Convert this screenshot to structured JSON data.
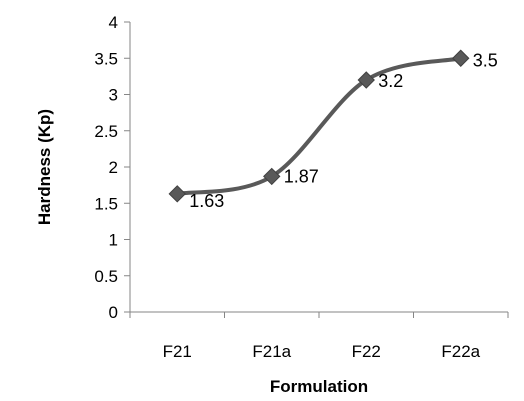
{
  "chart_data": {
    "type": "line",
    "title": "",
    "xlabel": "Formulation",
    "ylabel": "Hardness (Kp)",
    "categories": [
      "F21",
      "F21a",
      "F22",
      "F22a"
    ],
    "series": [
      {
        "values": [
          1.63,
          1.87,
          3.2,
          3.5
        ],
        "color": "#595959",
        "marker": "diamond",
        "smooth": true
      }
    ],
    "data_labels": [
      "1.63",
      "1.87",
      "3.2",
      "3.5"
    ],
    "ylim": [
      0,
      4
    ],
    "yticks": [
      "0",
      "0.5",
      "1",
      "1.5",
      "2",
      "2.5",
      "3",
      "3.5",
      "4"
    ],
    "grid": false,
    "legend": "none"
  }
}
